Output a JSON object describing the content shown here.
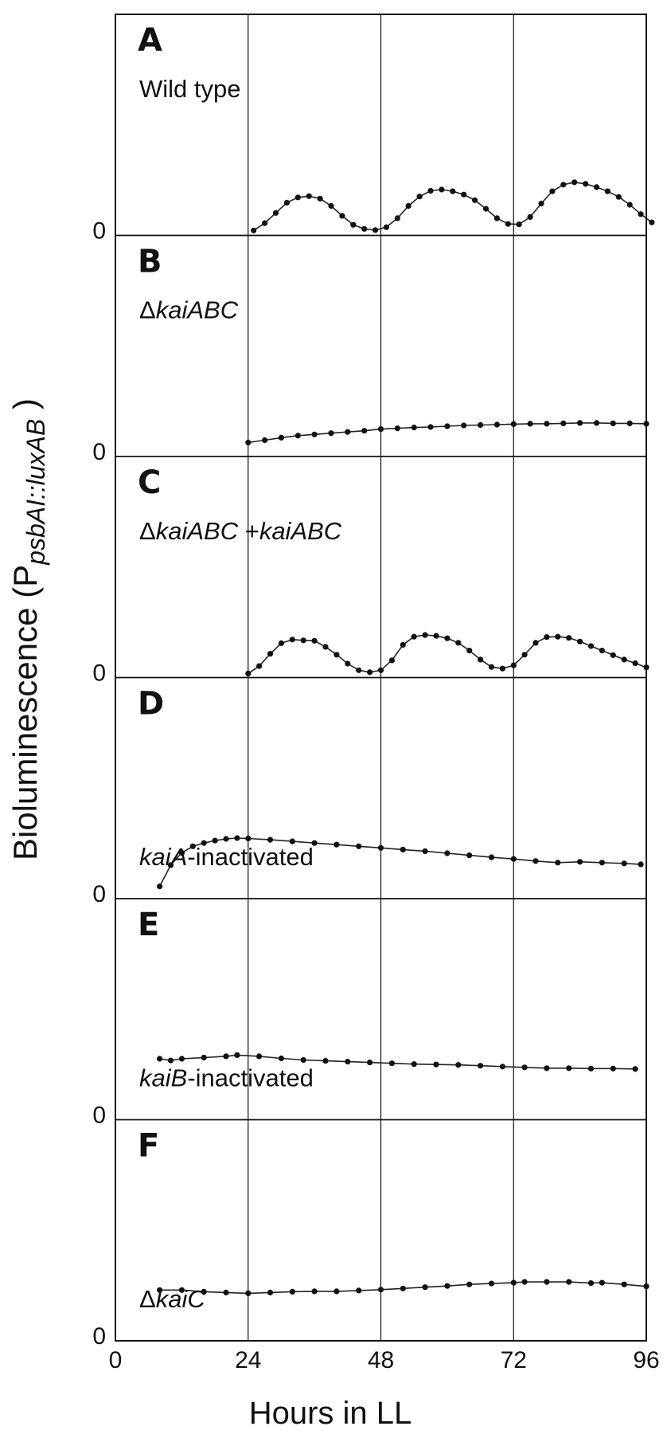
{
  "chart_data": {
    "type": "line",
    "xlabel": "Hours in LL",
    "ylabel": {
      "prefix": "Bioluminescence (P",
      "subscript": "psbAI::luxAB",
      "suffix": " )"
    },
    "xlim": [
      0,
      96
    ],
    "x_ticks": [
      "0",
      "24",
      "48",
      "72",
      "96"
    ],
    "grid_x": [
      24,
      48,
      72
    ],
    "panels": [
      {
        "letter": "A",
        "label": [
          {
            "t": "Wild type",
            "i": false
          }
        ],
        "y_zero_label": "0",
        "x": [
          25,
          27,
          29,
          31,
          33,
          35,
          37,
          39,
          41,
          43,
          45,
          47,
          49,
          51,
          53,
          55,
          57,
          59,
          61,
          63,
          65,
          67,
          69,
          71,
          73,
          75,
          77,
          79,
          81,
          83,
          85,
          87,
          89,
          91,
          93,
          95,
          97
        ],
        "values": [
          0.12,
          0.3,
          0.55,
          0.8,
          0.93,
          0.96,
          0.9,
          0.72,
          0.48,
          0.26,
          0.16,
          0.13,
          0.2,
          0.42,
          0.72,
          0.95,
          1.09,
          1.12,
          1.08,
          1.0,
          0.86,
          0.65,
          0.42,
          0.28,
          0.27,
          0.45,
          0.78,
          1.08,
          1.24,
          1.3,
          1.26,
          1.18,
          1.08,
          0.94,
          0.75,
          0.52,
          0.32
        ]
      },
      {
        "letter": "B",
        "label": [
          {
            "t": "Δ",
            "i": false
          },
          {
            "t": "kaiABC",
            "i": true
          }
        ],
        "y_zero_label": "0",
        "x": [
          24,
          27,
          30,
          33,
          36,
          39,
          42,
          45,
          48,
          51,
          54,
          57,
          60,
          63,
          66,
          69,
          72,
          75,
          78,
          81,
          84,
          87,
          90,
          93,
          96
        ],
        "values": [
          0.34,
          0.4,
          0.46,
          0.51,
          0.54,
          0.57,
          0.6,
          0.63,
          0.67,
          0.69,
          0.71,
          0.72,
          0.74,
          0.76,
          0.77,
          0.78,
          0.79,
          0.8,
          0.8,
          0.81,
          0.82,
          0.82,
          0.81,
          0.81,
          0.8
        ]
      },
      {
        "letter": "C",
        "label": [
          {
            "t": "Δ",
            "i": false
          },
          {
            "t": "kaiABC",
            "i": true
          },
          {
            "t": " +",
            "i": false
          },
          {
            "t": "kaiABC",
            "i": true
          }
        ],
        "y_zero_label": "0",
        "x": [
          24,
          26,
          28,
          30,
          32,
          34,
          36,
          38,
          40,
          42,
          44,
          46,
          48,
          50,
          52,
          54,
          56,
          58,
          60,
          62,
          64,
          66,
          68,
          70,
          72,
          74,
          76,
          78,
          80,
          82,
          84,
          86,
          88,
          90,
          92,
          94,
          96
        ],
        "values": [
          0.1,
          0.28,
          0.58,
          0.84,
          0.93,
          0.91,
          0.9,
          0.75,
          0.56,
          0.34,
          0.18,
          0.13,
          0.18,
          0.42,
          0.8,
          1.0,
          1.04,
          1.02,
          0.96,
          0.85,
          0.66,
          0.44,
          0.26,
          0.22,
          0.3,
          0.56,
          0.85,
          0.99,
          1.0,
          0.97,
          0.88,
          0.77,
          0.66,
          0.55,
          0.44,
          0.35,
          0.25
        ]
      },
      {
        "letter": "D",
        "label": [
          {
            "t": "kaiA",
            "i": true
          },
          {
            "t": "-inactivated",
            "i": false
          }
        ],
        "y_zero_label": "0",
        "x": [
          8,
          10,
          12,
          14,
          16,
          18,
          20,
          22,
          24,
          28,
          32,
          36,
          40,
          44,
          48,
          52,
          56,
          60,
          64,
          68,
          72,
          76,
          80,
          84,
          88,
          92,
          95
        ],
        "values": [
          0.3,
          0.82,
          1.12,
          1.28,
          1.36,
          1.42,
          1.46,
          1.48,
          1.47,
          1.44,
          1.4,
          1.36,
          1.32,
          1.28,
          1.24,
          1.2,
          1.16,
          1.11,
          1.06,
          1.01,
          0.97,
          0.92,
          0.88,
          0.9,
          0.88,
          0.86,
          0.84
        ]
      },
      {
        "letter": "E",
        "label": [
          {
            "t": "kaiB",
            "i": true
          },
          {
            "t": "-inactivated",
            "i": false
          }
        ],
        "y_zero_label": "0",
        "x": [
          8,
          10,
          12,
          16,
          20,
          22,
          26,
          30,
          34,
          38,
          42,
          46,
          50,
          54,
          58,
          62,
          66,
          70,
          74,
          78,
          82,
          86,
          90,
          94
        ],
        "values": [
          1.49,
          1.45,
          1.49,
          1.52,
          1.55,
          1.58,
          1.55,
          1.5,
          1.46,
          1.44,
          1.42,
          1.4,
          1.38,
          1.36,
          1.35,
          1.34,
          1.32,
          1.3,
          1.28,
          1.26,
          1.26,
          1.25,
          1.25,
          1.24
        ]
      },
      {
        "letter": "F",
        "label": [
          {
            "t": "Δ",
            "i": false
          },
          {
            "t": "kaiC",
            "i": true
          }
        ],
        "y_zero_label": "0",
        "x": [
          8,
          12,
          16,
          20,
          24,
          28,
          32,
          36,
          40,
          44,
          48,
          52,
          56,
          60,
          64,
          68,
          72,
          74,
          78,
          82,
          86,
          88,
          92,
          96
        ],
        "values": [
          1.24,
          1.24,
          1.2,
          1.18,
          1.16,
          1.18,
          1.2,
          1.21,
          1.21,
          1.23,
          1.25,
          1.28,
          1.31,
          1.34,
          1.38,
          1.4,
          1.42,
          1.44,
          1.44,
          1.44,
          1.41,
          1.42,
          1.38,
          1.33
        ]
      }
    ]
  }
}
